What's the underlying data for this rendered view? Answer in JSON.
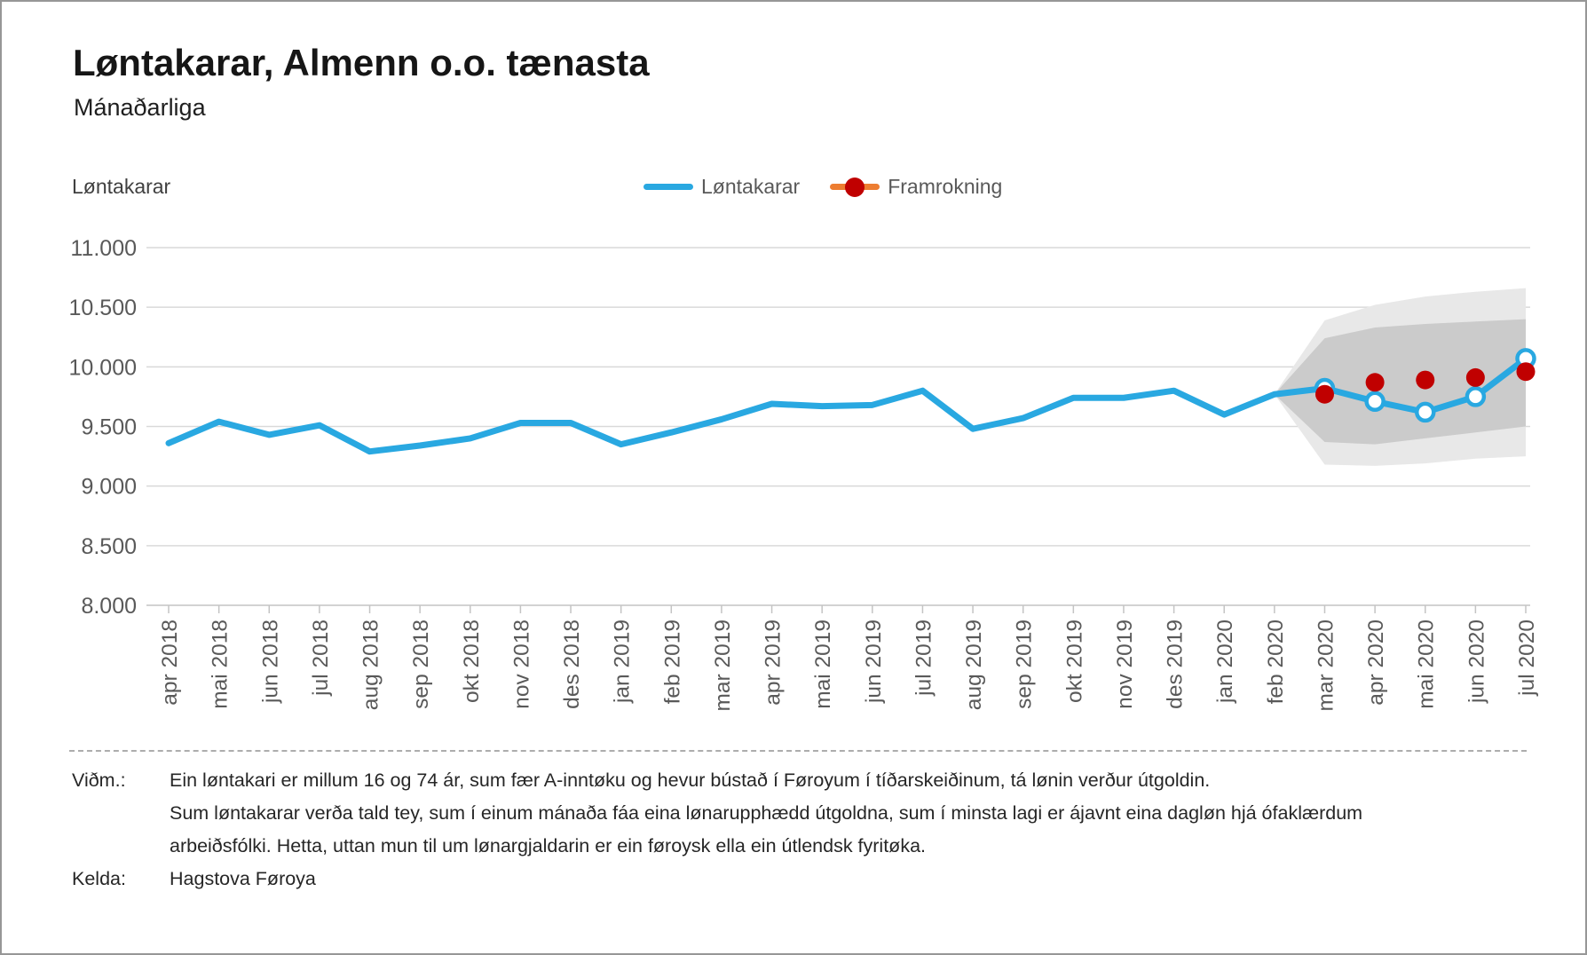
{
  "header": {
    "title": "Løntakarar, Almenn o.o. tænasta",
    "subtitle": "Mánaðarliga"
  },
  "chart": {
    "axis_title": "Løntakarar",
    "legend": [
      {
        "label": "Løntakarar",
        "type": "line",
        "color": "#29A8E1"
      },
      {
        "label": "Framrokning",
        "type": "line-dot",
        "color": "#ED7D31",
        "dot_color": "#C00000"
      }
    ]
  },
  "chart_data": {
    "type": "line",
    "title": "Løntakarar, Almenn o.o. tænasta",
    "subtitle": "Mánaðarliga",
    "ylabel": "Løntakarar",
    "xlabel": "",
    "grid": true,
    "legend_position": "top-center",
    "ylim": [
      8000,
      11000
    ],
    "yticks": [
      {
        "v": 11000,
        "label": "11.000"
      },
      {
        "v": 10500,
        "label": "10.500"
      },
      {
        "v": 10000,
        "label": "10.000"
      },
      {
        "v": 9500,
        "label": "9.500"
      },
      {
        "v": 9000,
        "label": "9.000"
      },
      {
        "v": 8500,
        "label": "8.500"
      },
      {
        "v": 8000,
        "label": "8.000"
      }
    ],
    "categories": [
      "apr 2018",
      "mai 2018",
      "jun 2018",
      "jul 2018",
      "aug 2018",
      "sep 2018",
      "okt 2018",
      "nov 2018",
      "des 2018",
      "jan 2019",
      "feb 2019",
      "mar 2019",
      "apr 2019",
      "mai 2019",
      "jun 2019",
      "jul 2019",
      "aug 2019",
      "sep 2019",
      "okt 2019",
      "nov 2019",
      "des 2019",
      "jan 2020",
      "feb 2020",
      "mar 2020",
      "apr 2020",
      "mai 2020",
      "jun 2020",
      "jul 2020"
    ],
    "series": [
      {
        "name": "Løntakarar",
        "color": "#29A8E1",
        "marker_indices": [
          23,
          24,
          25,
          26,
          27
        ],
        "values": [
          9360,
          9540,
          9430,
          9510,
          9290,
          9340,
          9400,
          9530,
          9530,
          9350,
          9450,
          9560,
          9690,
          9670,
          9680,
          9800,
          9480,
          9570,
          9740,
          9740,
          9800,
          9600,
          9770,
          9820,
          9710,
          9620,
          9750,
          10070
        ]
      },
      {
        "name": "Framrokning",
        "color": "#C00000",
        "marker_only": true,
        "start_index": 23,
        "values": [
          9770,
          9870,
          9890,
          9910,
          9960
        ]
      }
    ],
    "confidence_bands": {
      "start_index": 22,
      "outer": {
        "color": "#E8E8E8",
        "upper": [
          9770,
          10390,
          10520,
          10590,
          10630,
          10660
        ],
        "lower": [
          9770,
          9180,
          9170,
          9190,
          9230,
          9250
        ]
      },
      "inner": {
        "color": "#CBCBCB",
        "upper": [
          9770,
          10240,
          10330,
          10360,
          10380,
          10400
        ],
        "lower": [
          9770,
          9370,
          9350,
          9400,
          9450,
          9500
        ]
      }
    }
  },
  "footer": {
    "notes_label": "Viðm.:",
    "notes": [
      "Ein løntakari er millum 16 og 74 ár, sum fær A-inntøku og hevur bústað í Føroyum í tíðarskeiðinum, tá lønin verður útgoldin.",
      "Sum løntakarar verða tald tey, sum í einum mánaða fáa eina lønarupphædd útgoldna, sum í minsta lagi er ájavnt eina dagløn hjá ófaklærdum",
      "arbeiðsfólki. Hetta, uttan mun til um lønargjaldarin er ein føroysk ella ein útlendsk fyritøka."
    ],
    "source_label": "Kelda:",
    "source": "Hagstova Føroya"
  }
}
